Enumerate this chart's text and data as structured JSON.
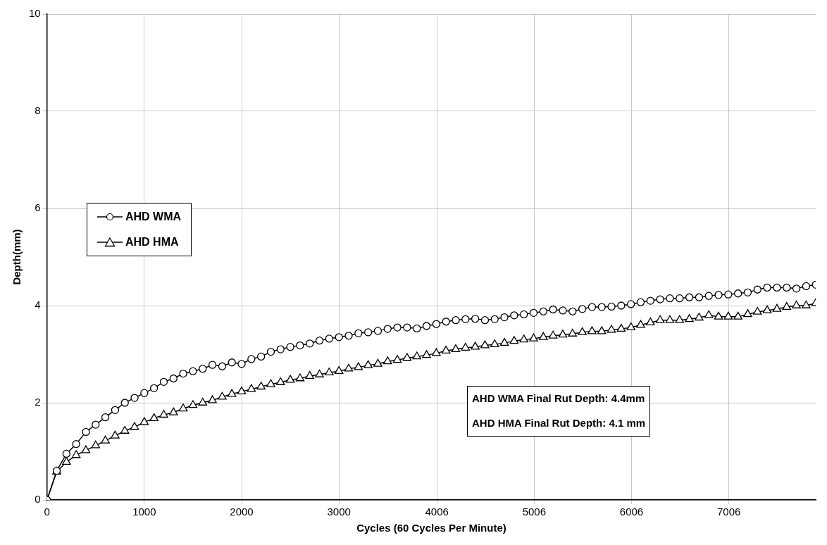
{
  "chart_data": {
    "type": "line",
    "xlabel": "Cycles (60 Cycles Per Minute)",
    "ylabel": "Depth(mm)",
    "x": [
      0,
      100,
      200,
      300,
      400,
      500,
      600,
      700,
      800,
      900,
      1000,
      1100,
      1200,
      1300,
      1400,
      1500,
      1600,
      1700,
      1800,
      1900,
      2000,
      2100,
      2200,
      2300,
      2400,
      2500,
      2600,
      2700,
      2800,
      2900,
      3000,
      3100,
      3200,
      3300,
      3400,
      3500,
      3600,
      3700,
      3800,
      3900,
      4000,
      4100,
      4200,
      4300,
      4400,
      4500,
      4600,
      4700,
      4800,
      4900,
      5000,
      5100,
      5200,
      5300,
      5400,
      5500,
      5600,
      5700,
      5800,
      5900,
      6000,
      6100,
      6200,
      6300,
      6400,
      6500,
      6600,
      6700,
      6800,
      6900,
      7000,
      7100,
      7200,
      7300,
      7400,
      7500,
      7600,
      7700,
      7800,
      7900
    ],
    "series": [
      {
        "name": "AHD WMA",
        "color": "#000000",
        "marker": "circle",
        "values": [
          0,
          0.6,
          0.95,
          1.15,
          1.4,
          1.55,
          1.7,
          1.85,
          2.0,
          2.1,
          2.2,
          2.3,
          2.43,
          2.5,
          2.6,
          2.65,
          2.7,
          2.78,
          2.75,
          2.83,
          2.8,
          2.9,
          2.95,
          3.05,
          3.1,
          3.15,
          3.18,
          3.22,
          3.28,
          3.32,
          3.35,
          3.38,
          3.43,
          3.45,
          3.48,
          3.52,
          3.55,
          3.55,
          3.53,
          3.58,
          3.62,
          3.67,
          3.7,
          3.72,
          3.73,
          3.7,
          3.72,
          3.76,
          3.8,
          3.82,
          3.85,
          3.88,
          3.92,
          3.9,
          3.88,
          3.93,
          3.97,
          3.97,
          3.98,
          4.0,
          4.03,
          4.07,
          4.1,
          4.13,
          4.15,
          4.15,
          4.17,
          4.17,
          4.2,
          4.22,
          4.23,
          4.25,
          4.27,
          4.33,
          4.37,
          4.37,
          4.37,
          4.35,
          4.4,
          4.43
        ]
      },
      {
        "name": "AHD HMA",
        "color": "#000000",
        "marker": "triangle",
        "values": [
          0,
          0.58,
          0.78,
          0.92,
          1.02,
          1.12,
          1.22,
          1.32,
          1.42,
          1.5,
          1.6,
          1.68,
          1.75,
          1.8,
          1.88,
          1.95,
          2.0,
          2.05,
          2.12,
          2.18,
          2.23,
          2.28,
          2.33,
          2.38,
          2.42,
          2.47,
          2.5,
          2.55,
          2.58,
          2.62,
          2.65,
          2.7,
          2.73,
          2.77,
          2.8,
          2.85,
          2.88,
          2.92,
          2.95,
          2.98,
          3.02,
          3.07,
          3.1,
          3.13,
          3.15,
          3.18,
          3.2,
          3.23,
          3.27,
          3.3,
          3.32,
          3.35,
          3.38,
          3.4,
          3.42,
          3.45,
          3.47,
          3.47,
          3.5,
          3.52,
          3.55,
          3.6,
          3.65,
          3.7,
          3.7,
          3.7,
          3.72,
          3.75,
          3.8,
          3.77,
          3.77,
          3.77,
          3.82,
          3.87,
          3.9,
          3.93,
          3.97,
          4.0,
          4.0,
          4.05
        ]
      }
    ],
    "xlim": [
      0,
      7900
    ],
    "xticks": [
      0,
      1000,
      2000,
      3000,
      4006,
      5006,
      6006,
      7006
    ],
    "ylim": [
      0,
      10
    ],
    "yticks": [
      0,
      2,
      4,
      6,
      8,
      10
    ],
    "grid": true,
    "legend": "left",
    "annotations": [
      "AHD WMA Final Rut Depth: 4.4mm",
      "AHD HMA Final Rut Depth: 4.1 mm"
    ]
  }
}
